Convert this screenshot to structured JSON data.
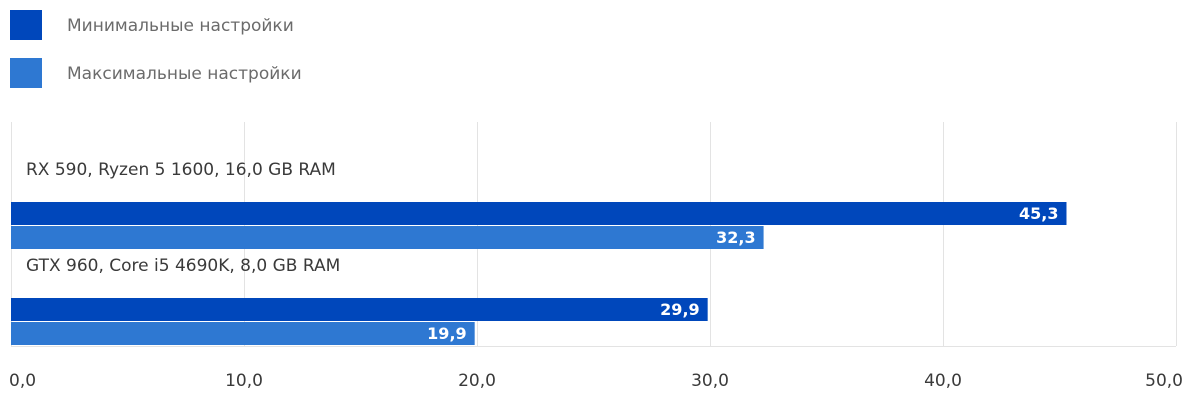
{
  "chart_data": {
    "type": "bar",
    "orientation": "horizontal",
    "title": "",
    "xlabel": "",
    "ylabel": "",
    "categories": [
      "RX 590, Ryzen 5 1600, 16,0 GB RAM",
      "GTX 960, Core i5 4690K, 8,0 GB RAM"
    ],
    "series": [
      {
        "name": "Минимальные настройки",
        "values": [
          45.3,
          29.9
        ],
        "color": "#0047bb"
      },
      {
        "name": "Максимальные настройки",
        "values": [
          32.3,
          19.9
        ],
        "color": "#2e78d2"
      }
    ],
    "value_labels": [
      [
        "45,3",
        "29,9"
      ],
      [
        "32,3",
        "19,9"
      ]
    ],
    "xlim": [
      0,
      50
    ],
    "ticks": [
      0,
      10,
      20,
      30,
      40,
      50
    ],
    "tick_labels": [
      "0,0",
      "10,0",
      "20,0",
      "30,0",
      "40,0",
      "50,0"
    ],
    "grid": true,
    "legend_position": "top-left"
  }
}
